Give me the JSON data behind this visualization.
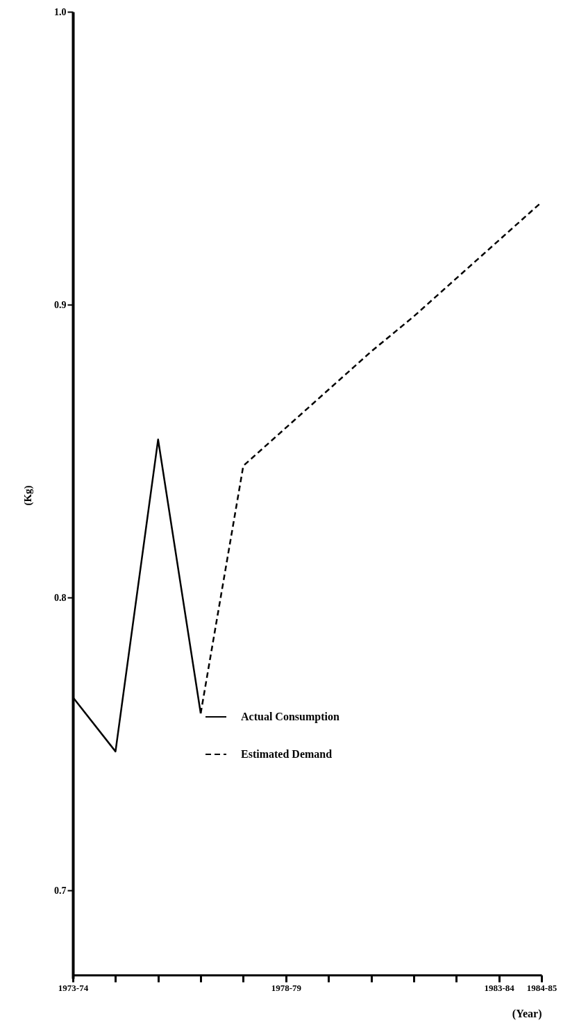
{
  "chart_data": {
    "type": "line",
    "xlabel": "(Year)",
    "ylabel": "(Kg)",
    "categories": [
      "1973-74",
      null,
      null,
      null,
      null,
      "1978-79",
      null,
      null,
      null,
      null,
      "1983-84",
      "1984-85"
    ],
    "series": [
      {
        "name": "Actual Consumption",
        "color": "#000000",
        "line_style": "solid",
        "values": [
          0.766,
          0.7475,
          0.854,
          0.7605,
          null,
          null,
          null,
          null,
          null,
          null,
          null,
          null
        ]
      },
      {
        "name": "Estimated Demand",
        "color": "#000000",
        "line_style": "dashed",
        "values": [
          null,
          null,
          null,
          0.7605,
          0.845,
          0.858,
          0.871,
          0.884,
          0.896,
          0.909,
          0.922,
          0.935
        ]
      }
    ],
    "ylim": [
      0.67,
      1.0
    ],
    "yticks": [
      0.7,
      0.8,
      0.9,
      {
        "value": 1.0,
        "label": "1.0"
      }
    ],
    "grid": false,
    "legend": "bottom",
    "marker": "none"
  }
}
